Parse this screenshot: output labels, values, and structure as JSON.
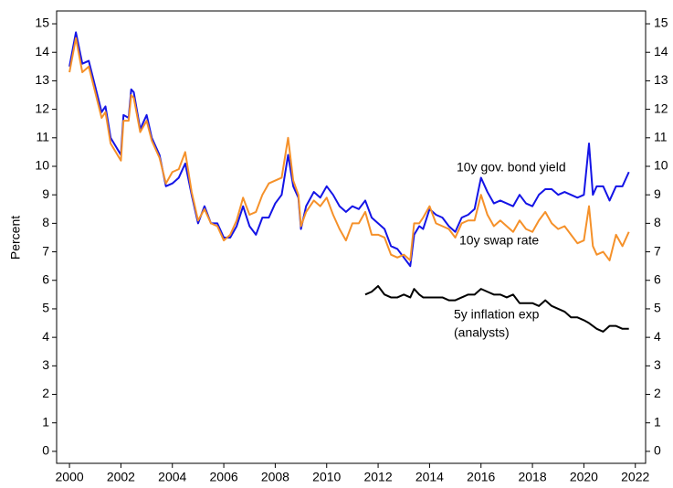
{
  "chart_data": {
    "type": "line",
    "y_label": "Percent",
    "x": [
      2000.0,
      2000.25,
      2000.5,
      2000.75,
      2001.0,
      2001.25,
      2001.4,
      2001.6,
      2001.8,
      2002.0,
      2002.1,
      2002.3,
      2002.4,
      2002.5,
      2002.75,
      2003.0,
      2003.2,
      2003.4,
      2003.5,
      2003.75,
      2004.0,
      2004.25,
      2004.5,
      2004.75,
      2005.0,
      2005.25,
      2005.5,
      2005.75,
      2006.0,
      2006.25,
      2006.5,
      2006.75,
      2007.0,
      2007.25,
      2007.5,
      2007.75,
      2008.0,
      2008.25,
      2008.5,
      2008.7,
      2008.9,
      2009.0,
      2009.2,
      2009.5,
      2009.75,
      2010.0,
      2010.25,
      2010.5,
      2010.75,
      2011.0,
      2011.25,
      2011.5,
      2011.75,
      2012.0,
      2012.25,
      2012.5,
      2012.75,
      2013.0,
      2013.25,
      2013.4,
      2013.6,
      2013.75,
      2014.0,
      2014.25,
      2014.5,
      2014.75,
      2015.0,
      2015.25,
      2015.5,
      2015.75,
      2016.0,
      2016.25,
      2016.5,
      2016.75,
      2017.0,
      2017.25,
      2017.5,
      2017.75,
      2018.0,
      2018.25,
      2018.5,
      2018.75,
      2019.0,
      2019.25,
      2019.5,
      2019.75,
      2020.0,
      2020.2,
      2020.35,
      2020.5,
      2020.75,
      2021.0,
      2021.25,
      2021.5,
      2021.75
    ],
    "series": [
      {
        "color": "#1414e6",
        "values": [
          13.5,
          14.7,
          13.6,
          13.7,
          12.8,
          11.9,
          12.1,
          11.0,
          10.7,
          10.4,
          11.8,
          11.7,
          12.7,
          12.6,
          11.3,
          11.8,
          11.0,
          10.6,
          10.4,
          9.3,
          9.4,
          9.6,
          10.1,
          9.0,
          8.0,
          8.6,
          8.0,
          8.0,
          7.5,
          7.5,
          7.9,
          8.6,
          7.9,
          7.6,
          8.2,
          8.2,
          8.7,
          9.0,
          10.4,
          9.3,
          8.9,
          7.8,
          8.6,
          9.1,
          8.9,
          9.3,
          9.0,
          8.6,
          8.4,
          8.6,
          8.5,
          8.8,
          8.2,
          8.0,
          7.8,
          7.2,
          7.1,
          6.8,
          6.5,
          7.6,
          7.9,
          7.8,
          8.5,
          8.3,
          8.2,
          7.9,
          7.7,
          8.2,
          8.3,
          8.5,
          9.6,
          9.1,
          8.7,
          8.8,
          8.7,
          8.6,
          9.0,
          8.7,
          8.6,
          9.0,
          9.2,
          9.2,
          9.0,
          9.1,
          9.0,
          8.9,
          9.0,
          10.8,
          9.0,
          9.3,
          9.3,
          8.8,
          9.3,
          9.3,
          9.8
        ]
      },
      {
        "color": "#f5912a",
        "values": [
          13.3,
          14.5,
          13.3,
          13.5,
          12.6,
          11.7,
          11.9,
          10.8,
          10.5,
          10.2,
          11.6,
          11.6,
          12.5,
          12.4,
          11.2,
          11.6,
          10.9,
          10.5,
          10.3,
          9.4,
          9.8,
          9.9,
          10.5,
          9.1,
          8.1,
          8.5,
          8.0,
          7.9,
          7.4,
          7.6,
          8.1,
          8.9,
          8.3,
          8.4,
          9.0,
          9.4,
          9.5,
          9.6,
          11.0,
          9.5,
          9.0,
          7.9,
          8.4,
          8.8,
          8.6,
          8.9,
          8.3,
          7.8,
          7.4,
          8.0,
          8.0,
          8.4,
          7.6,
          7.6,
          7.5,
          6.9,
          6.8,
          6.9,
          6.7,
          8.0,
          8.0,
          8.2,
          8.6,
          8.0,
          7.9,
          7.8,
          7.5,
          8.0,
          8.1,
          8.1,
          9.0,
          8.3,
          7.9,
          8.1,
          7.9,
          7.7,
          8.1,
          7.8,
          7.7,
          8.1,
          8.4,
          8.0,
          7.8,
          7.9,
          7.6,
          7.3,
          7.4,
          8.6,
          7.2,
          6.9,
          7.0,
          6.7,
          7.6,
          7.2,
          7.7
        ]
      },
      {
        "color": "#000000",
        "values": [
          null,
          null,
          null,
          null,
          null,
          null,
          null,
          null,
          null,
          null,
          null,
          null,
          null,
          null,
          null,
          null,
          null,
          null,
          null,
          null,
          null,
          null,
          null,
          null,
          null,
          null,
          null,
          null,
          null,
          null,
          null,
          null,
          null,
          null,
          null,
          null,
          null,
          null,
          null,
          null,
          null,
          null,
          null,
          null,
          null,
          null,
          null,
          null,
          null,
          null,
          null,
          5.5,
          5.6,
          5.8,
          5.5,
          5.4,
          5.4,
          5.5,
          5.4,
          5.7,
          5.5,
          5.4,
          5.4,
          5.4,
          5.4,
          5.3,
          5.3,
          5.4,
          5.5,
          5.5,
          5.7,
          5.6,
          5.5,
          5.5,
          5.4,
          5.5,
          5.2,
          5.2,
          5.2,
          5.1,
          5.3,
          5.1,
          5.0,
          4.9,
          4.7,
          4.7,
          4.6,
          4.5,
          4.4,
          4.3,
          4.2,
          4.4,
          4.4,
          4.3,
          4.3
        ]
      }
    ],
    "annotations": [
      {
        "text": "10y gov. bond yield",
        "color": "#1414e6"
      },
      {
        "text": "10y swap rate",
        "color": "#f5912a"
      },
      {
        "text": "5y inflation exp",
        "color": "#000000"
      },
      {
        "text": "(analysts)",
        "color": "#000000"
      }
    ],
    "xlim": [
      1999.5,
      2022.4
    ],
    "xticks": [
      2000,
      2002,
      2004,
      2006,
      2008,
      2010,
      2012,
      2014,
      2016,
      2018,
      2020,
      2022
    ],
    "ylim": [
      -0.42,
      15.45
    ],
    "yticks": [
      0,
      1,
      2,
      3,
      4,
      5,
      6,
      7,
      8,
      9,
      10,
      11,
      12,
      13,
      14,
      15
    ],
    "y2lim": [
      -0.42,
      15.45
    ],
    "y2ticks": [
      0,
      1,
      2,
      3,
      4,
      5,
      6,
      7,
      8,
      9,
      10,
      11,
      12,
      13,
      14,
      15
    ]
  }
}
